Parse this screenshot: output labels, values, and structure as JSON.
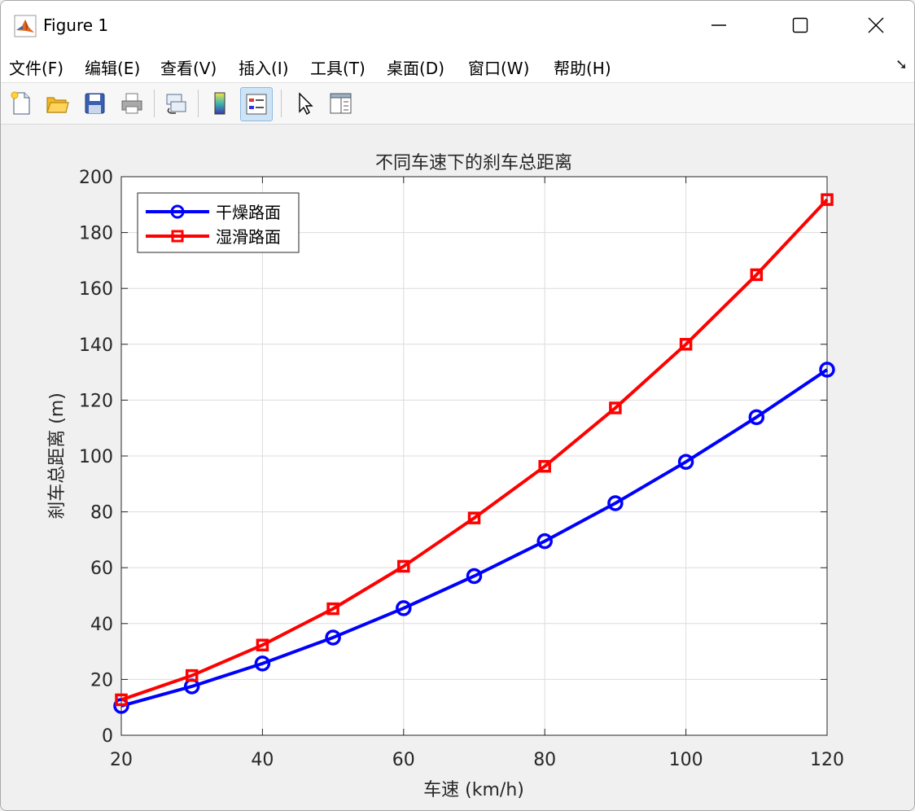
{
  "window": {
    "title": "Figure 1"
  },
  "menu": [
    {
      "label": "文件(F)"
    },
    {
      "label": "编辑(E)"
    },
    {
      "label": "查看(V)"
    },
    {
      "label": "插入(I)"
    },
    {
      "label": "工具(T)"
    },
    {
      "label": "桌面(D)"
    },
    {
      "label": "窗口(W)"
    },
    {
      "label": "帮助(H)"
    }
  ],
  "menu_collapse_glyph": "➘",
  "toolbar": {
    "tools": [
      "new-file-icon",
      "open-folder-icon",
      "save-icon",
      "print-icon",
      "link-plot-icon",
      "colorbar-icon",
      "legend-icon",
      "pointer-icon",
      "property-editor-icon"
    ],
    "active": "legend-icon"
  },
  "colors": {
    "dry": "#0000ff",
    "wet": "#ff0000",
    "grid": "#dcdcdc",
    "axis": "#262626"
  },
  "chart_data": {
    "type": "line",
    "title": "不同车速下的刹车总距离",
    "xlabel": "车速 (km/h)",
    "ylabel": "刹车总距离 (m)",
    "xlim": [
      20,
      120
    ],
    "ylim": [
      0,
      200
    ],
    "xticks": [
      20,
      40,
      60,
      80,
      100,
      120
    ],
    "yticks": [
      0,
      20,
      40,
      60,
      80,
      100,
      120,
      140,
      160,
      180,
      200
    ],
    "grid": true,
    "legend_position": "top-left",
    "x": [
      20,
      30,
      40,
      50,
      60,
      70,
      80,
      90,
      100,
      110,
      120
    ],
    "series": [
      {
        "name": "干燥路面",
        "marker": "circle",
        "color": "#0000ff",
        "values": [
          10.5,
          17.5,
          25.7,
          35.0,
          45.5,
          57.0,
          69.5,
          83.1,
          97.9,
          113.9,
          130.9
        ]
      },
      {
        "name": "湿滑路面",
        "marker": "square",
        "color": "#ff0000",
        "values": [
          12.7,
          21.4,
          32.3,
          45.3,
          60.5,
          77.8,
          96.3,
          117.2,
          140.0,
          164.9,
          191.8
        ]
      }
    ]
  }
}
